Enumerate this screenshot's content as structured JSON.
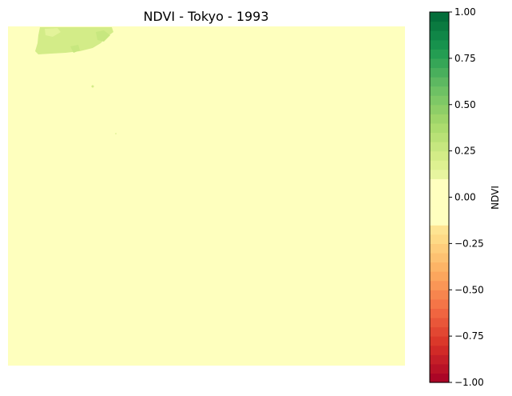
{
  "chart_data": {
    "type": "heatmap",
    "title": "NDVI - Tokyo - 1993",
    "xlabel": "",
    "ylabel": "",
    "axes_visible": false,
    "grid": false,
    "dominant_value": 0.05,
    "vegetation_region": {
      "location": "top-left",
      "approx_value_range": [
        0.2,
        0.35
      ]
    },
    "colorbar": {
      "label": "NDVI",
      "colormap": "RdYlGn",
      "levels": 40,
      "vmin": -1.0,
      "vmax": 1.0,
      "ticks": [
        1.0,
        0.75,
        0.5,
        0.25,
        0.0,
        -0.25,
        -0.5,
        -0.75,
        -1.0
      ],
      "tick_labels": [
        "1.00",
        "0.75",
        "0.50",
        "0.25",
        "0.00",
        "−0.25",
        "−0.50",
        "−0.75",
        "−1.00"
      ],
      "placement": "right"
    },
    "colors": {
      "neutral": "#feffbe",
      "vegetation": "#d3ec88",
      "vegetation_light": "#e3f39a"
    }
  }
}
